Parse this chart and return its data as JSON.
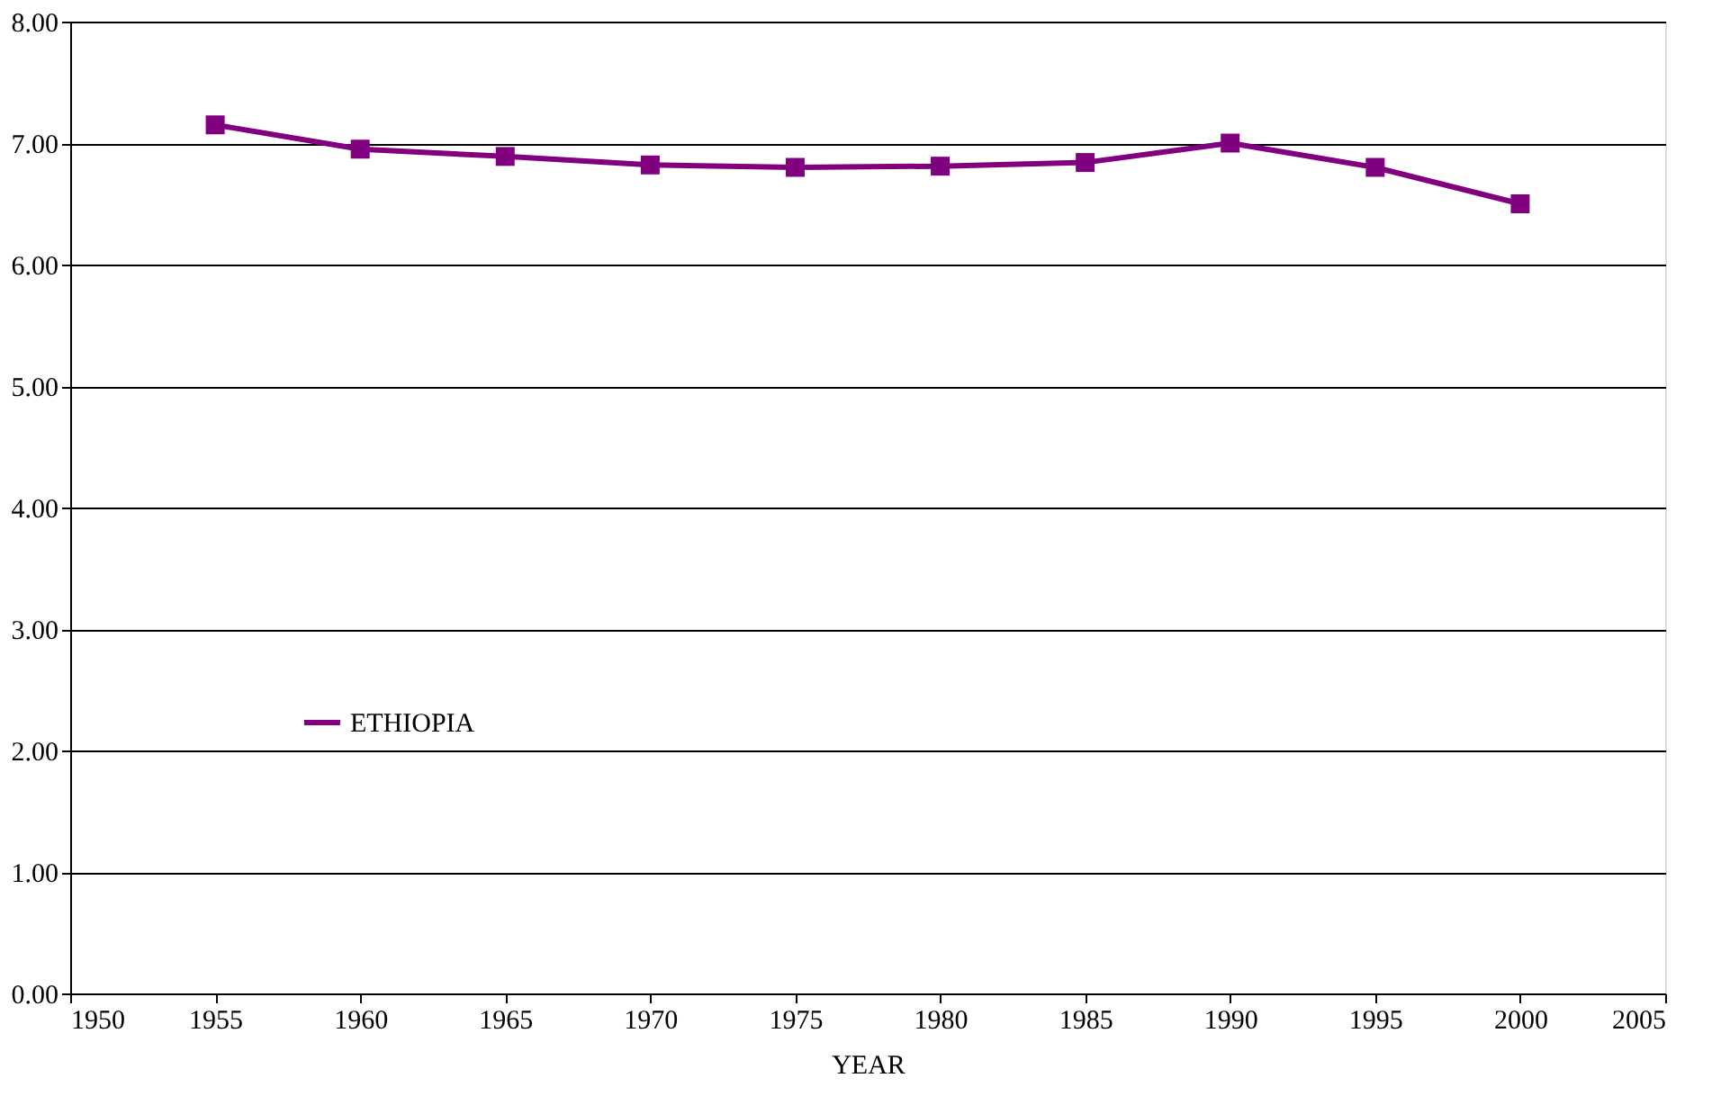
{
  "chart_data": {
    "type": "line",
    "xlabel": "YEAR",
    "x": [
      1955,
      1960,
      1965,
      1970,
      1975,
      1980,
      1985,
      1990,
      1995,
      2000
    ],
    "series": [
      {
        "name": "ETHIOPIA",
        "color": "#800080",
        "values": [
          7.15,
          6.95,
          6.89,
          6.82,
          6.8,
          6.81,
          6.84,
          7.0,
          6.8,
          6.5
        ]
      }
    ],
    "xlim": [
      1950,
      2005
    ],
    "xticks": [
      1950,
      1955,
      1960,
      1965,
      1970,
      1975,
      1980,
      1985,
      1990,
      1995,
      2000,
      2005
    ],
    "ylim": [
      0,
      8
    ],
    "yticks": [
      {
        "value": 0,
        "label": "0.00"
      },
      {
        "value": 1,
        "label": "1.00"
      },
      {
        "value": 2,
        "label": "2.00"
      },
      {
        "value": 3,
        "label": "3.00"
      },
      {
        "value": 4,
        "label": "4.00"
      },
      {
        "value": 5,
        "label": "5.00"
      },
      {
        "value": 6,
        "label": "6.00"
      },
      {
        "value": 7,
        "label": "7.00"
      },
      {
        "value": 8,
        "label": "8.00"
      }
    ],
    "grid": "y",
    "legend": "bottom left",
    "marker": "square",
    "line_style": "solid"
  }
}
